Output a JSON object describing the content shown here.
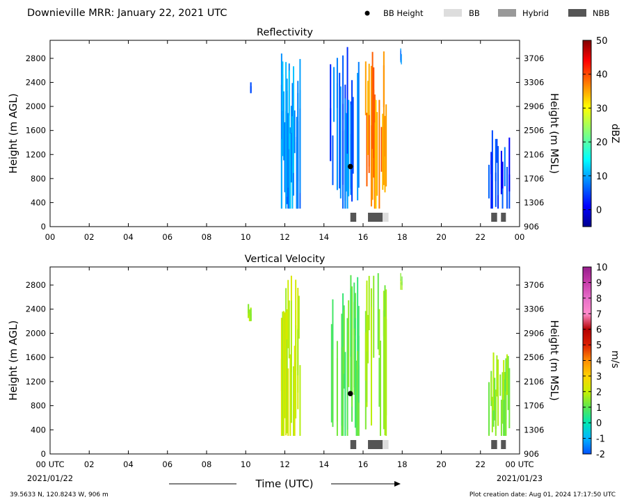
{
  "header": {
    "title": "Downieville MRR:  January 22, 2021 UTC",
    "legend": [
      {
        "label": "BB Height",
        "kind": "dot",
        "color": "#000000"
      },
      {
        "label": "BB",
        "kind": "box",
        "color": "#dddddd"
      },
      {
        "label": "Hybrid",
        "kind": "box",
        "color": "#999999"
      },
      {
        "label": "NBB",
        "kind": "box",
        "color": "#555555"
      }
    ]
  },
  "footer": {
    "location": "39.5633 N, 120.8243 W, 906 m",
    "creation": "Plot creation date: Aug 01, 2024 17:17:50 UTC",
    "start_date": "2021/01/22",
    "end_date": "2021/01/23"
  },
  "chart_data": [
    {
      "type": "heatmap",
      "title": "Reflectivity",
      "xlabel": "",
      "ylabel": "Height (m AGL)",
      "ylabel_right": "Height (m MSL)",
      "xlim": [
        0,
        24
      ],
      "ylim": [
        0,
        3100
      ],
      "x_ticks": [
        "00",
        "02",
        "04",
        "06",
        "08",
        "10",
        "12",
        "14",
        "16",
        "18",
        "20",
        "22",
        "00"
      ],
      "y_ticks": [
        0,
        400,
        800,
        1200,
        1600,
        2000,
        2400,
        2800
      ],
      "y_ticks_right": [
        "906",
        "1306",
        "1706",
        "2106",
        "2506",
        "2906",
        "3306",
        "3706"
      ],
      "colorbar": {
        "label": "dBZ",
        "range": [
          -5,
          50
        ],
        "ticks": [
          "0",
          "10",
          "20",
          "30",
          "40",
          "50"
        ],
        "scheme": "jet"
      },
      "echo_columns": [
        {
          "x_start": 10.1,
          "x_end": 10.35,
          "y_bottom": 2200,
          "y_top": 2500,
          "value": 3
        },
        {
          "x_start": 11.8,
          "x_end": 12.8,
          "y_bottom": 300,
          "y_top": 3000,
          "value": 9
        },
        {
          "x_start": 14.3,
          "x_end": 15.8,
          "y_bottom": 300,
          "y_top": 3000,
          "value": 7
        },
        {
          "x_start": 16.1,
          "x_end": 17.2,
          "y_bottom": 300,
          "y_top": 3000,
          "value": 36
        },
        {
          "x_start": 17.9,
          "x_end": 18.0,
          "y_bottom": 2700,
          "y_top": 3000,
          "value": 8
        },
        {
          "x_start": 22.4,
          "x_end": 23.5,
          "y_bottom": 300,
          "y_top": 1700,
          "value": 4
        }
      ],
      "bright_band": {
        "x": 15.35,
        "height": 1000
      },
      "bb_bars": [
        {
          "x_start": 15.35,
          "x_end": 15.65,
          "kind": "NBB"
        },
        {
          "x_start": 16.25,
          "x_end": 17.0,
          "kind": "NBB"
        },
        {
          "x_start": 17.0,
          "x_end": 17.3,
          "kind": "BB"
        },
        {
          "x_start": 22.55,
          "x_end": 22.85,
          "kind": "NBB"
        },
        {
          "x_start": 23.05,
          "x_end": 23.3,
          "kind": "NBB"
        }
      ]
    },
    {
      "type": "heatmap",
      "title": "Vertical Velocity",
      "xlabel": "Time (UTC)",
      "ylabel": "Height (m AGL)",
      "ylabel_right": "Height (m MSL)",
      "xlim": [
        0,
        24
      ],
      "ylim": [
        0,
        3100
      ],
      "x_ticks": [
        "00 UTC",
        "02",
        "04",
        "06",
        "08",
        "10",
        "12",
        "14",
        "16",
        "18",
        "20",
        "22",
        "00 UTC"
      ],
      "y_ticks": [
        0,
        400,
        800,
        1200,
        1600,
        2000,
        2400,
        2800
      ],
      "y_ticks_right": [
        "906",
        "1306",
        "1706",
        "2106",
        "2506",
        "2906",
        "3306",
        "3706"
      ],
      "colorbar": {
        "label": "m/s",
        "range": [
          -2,
          10
        ],
        "ticks": [
          "-2",
          "-1",
          "0",
          "1",
          "2",
          "3",
          "4",
          "5",
          "6",
          "7",
          "8",
          "9",
          "10"
        ],
        "scheme": "velocity"
      },
      "echo_columns": [
        {
          "x_start": 10.1,
          "x_end": 10.35,
          "y_bottom": 2200,
          "y_top": 2500,
          "value": 1.5
        },
        {
          "x_start": 11.8,
          "x_end": 12.8,
          "y_bottom": 300,
          "y_top": 3000,
          "value": 2
        },
        {
          "x_start": 14.3,
          "x_end": 15.8,
          "y_bottom": 300,
          "y_top": 3000,
          "value": 1
        },
        {
          "x_start": 16.1,
          "x_end": 17.2,
          "y_bottom": 300,
          "y_top": 3000,
          "value": 1.5
        },
        {
          "x_start": 17.9,
          "x_end": 18.0,
          "y_bottom": 2700,
          "y_top": 3000,
          "value": 1.5
        },
        {
          "x_start": 22.4,
          "x_end": 23.5,
          "y_bottom": 300,
          "y_top": 1700,
          "value": 1.5
        }
      ],
      "bright_band": {
        "x": 15.35,
        "height": 1000
      },
      "bb_bars": [
        {
          "x_start": 15.35,
          "x_end": 15.65,
          "kind": "NBB"
        },
        {
          "x_start": 16.25,
          "x_end": 17.0,
          "kind": "NBB"
        },
        {
          "x_start": 17.0,
          "x_end": 17.3,
          "kind": "BB"
        },
        {
          "x_start": 22.55,
          "x_end": 22.85,
          "kind": "NBB"
        },
        {
          "x_start": 23.05,
          "x_end": 23.3,
          "kind": "NBB"
        }
      ]
    }
  ]
}
